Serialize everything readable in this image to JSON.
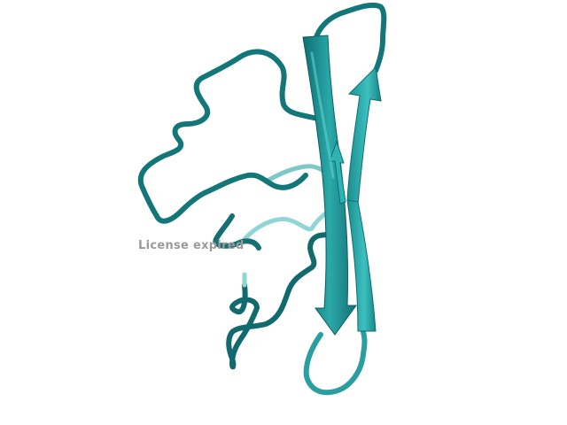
{
  "viewer": {
    "watermark_text": "License expired"
  },
  "structure": {
    "representation": "cartoon",
    "colors": {
      "dark": "#13777a",
      "mid": "#21a3a3",
      "light": "#4fc3c3",
      "pale": "#7fd0d0"
    }
  }
}
